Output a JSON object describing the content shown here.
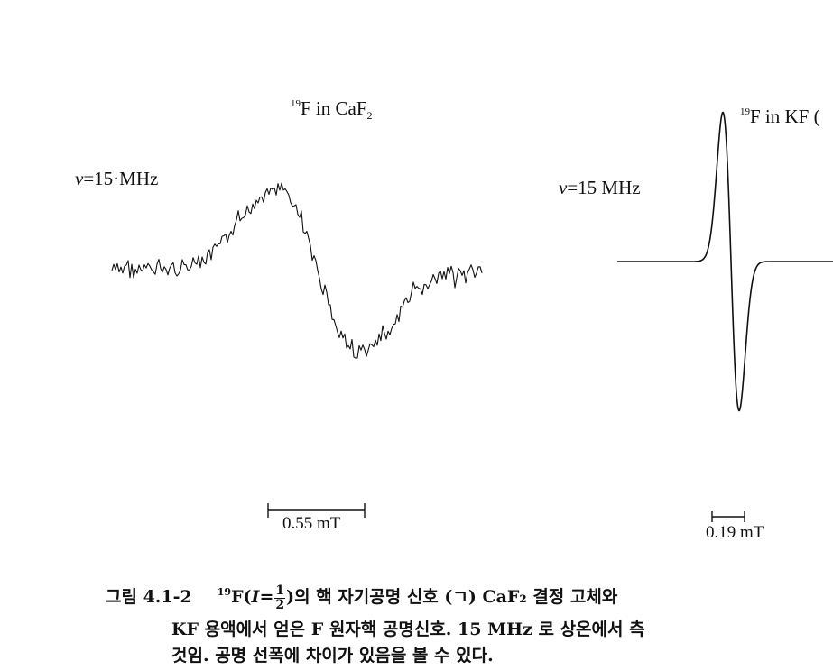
{
  "left_panel": {
    "isotope_mass": "19",
    "nucleus": "F in CaF",
    "subscript": "2",
    "freq_prefix": "ν",
    "freq_value": "=15·MHz",
    "scale_label": "0.55 mT",
    "trace_color": "#111111"
  },
  "right_panel": {
    "isotope_mass": "19",
    "nucleus": "F in KF (",
    "freq_prefix": "ν",
    "freq_value": "=15 MHz",
    "scale_label": "0.19 mT",
    "trace_color": "#111111"
  },
  "caption": {
    "figure_label": "그림 4.1-2",
    "isotope_mass": "19",
    "spin_prefix": "F(",
    "spin_var": "I",
    "spin_eq": "=",
    "frac_num": "1",
    "frac_den": "2",
    "line1_rest": ")의 핵 자기공명 신호 (ㄱ) CaF₂ 결정 고체와",
    "line2": "KF 용액에서 얻은 F 원자핵 공명신호. 15 MHz 로 상온에서 측",
    "line3": "것임. 공명 선폭에 차이가 있음을 볼 수 있다."
  }
}
